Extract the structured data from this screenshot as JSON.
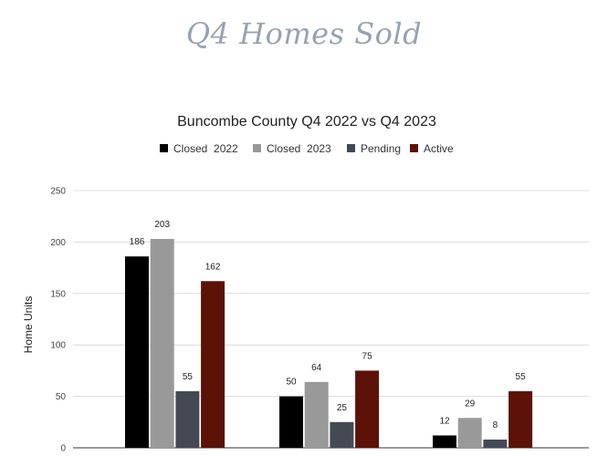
{
  "page": {
    "heading": "Q4 Homes Sold"
  },
  "chart_data": {
    "type": "bar",
    "title": "Buncombe County Q4 2022 vs Q4 2023",
    "xlabel": "",
    "ylabel": "Home Units",
    "ylim": [
      0,
      250
    ],
    "yticks": [
      0,
      50,
      100,
      150,
      200,
      250
    ],
    "grid": true,
    "legend_position": "top",
    "categories": [
      "",
      "",
      ""
    ],
    "series": [
      {
        "name": "Closed  2022",
        "color": "#000000",
        "values": [
          186,
          50,
          12
        ]
      },
      {
        "name": "Closed  2023",
        "color": "#999999",
        "values": [
          203,
          64,
          29
        ]
      },
      {
        "name": "Pending",
        "color": "#434a54",
        "values": [
          55,
          25,
          8
        ]
      },
      {
        "name": "Active",
        "color": "#5c1206",
        "values": [
          162,
          75,
          55
        ]
      }
    ]
  }
}
